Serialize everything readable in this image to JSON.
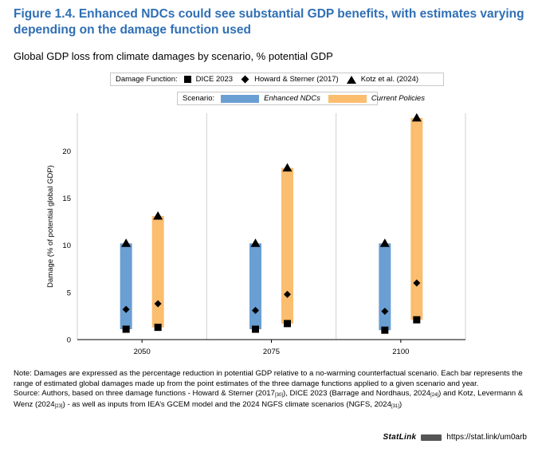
{
  "header": {
    "figure_title": "Figure 1.4. Enhanced NDCs could see substantial GDP benefits, with estimates varying depending on the damage function used",
    "subtitle": "Global GDP loss from climate damages by scenario, % potential GDP"
  },
  "legend": {
    "damage_function_label": "Damage Function:",
    "damage_functions": [
      {
        "name": "DICE 2023",
        "marker": "square"
      },
      {
        "name": "Howard & Sterner (2017)",
        "marker": "diamond"
      },
      {
        "name": "Kotz et al. (2024)",
        "marker": "triangle"
      }
    ],
    "scenario_label": "Scenario:",
    "scenarios": [
      {
        "name": "Enhanced NDCs",
        "color": "#6a9fd4"
      },
      {
        "name": "Current Policies",
        "color": "#fbbd6e"
      }
    ]
  },
  "chart_data": {
    "type": "range-bar",
    "title": "Global GDP loss from climate damages by scenario, % potential GDP",
    "xlabel": "",
    "ylabel": "Damage (% of potential global GDP)",
    "ylim": [
      0,
      24
    ],
    "yticks": [
      0,
      5,
      10,
      15,
      20
    ],
    "categories": [
      "2050",
      "2075",
      "2100"
    ],
    "series": [
      {
        "name": "Enhanced NDCs",
        "color": "#6a9fd4",
        "ranges": [
          {
            "dice": 1.1,
            "howard": 3.2,
            "kotz": 10.2
          },
          {
            "dice": 1.1,
            "howard": 3.1,
            "kotz": 10.2
          },
          {
            "dice": 1.0,
            "howard": 3.0,
            "kotz": 10.2
          }
        ]
      },
      {
        "name": "Current Policies",
        "color": "#fbbd6e",
        "ranges": [
          {
            "dice": 1.3,
            "howard": 3.8,
            "kotz": 13.1
          },
          {
            "dice": 1.7,
            "howard": 4.8,
            "kotz": 18.2
          },
          {
            "dice": 2.1,
            "howard": 6.0,
            "kotz": 23.5
          }
        ]
      }
    ]
  },
  "notes": {
    "note": "Note: Damages are expressed as the percentage reduction in potential GDP relative to a no-warming counterfactual scenario. Each bar represents the range of estimated global damages made up from the point estimates of the three damage functions applied to a given scenario and year.",
    "source_a": "Source: Authors, based on three damage functions - Howard & Sterner (2017",
    "ref_30": "[30]",
    "source_b": "), DICE 2023 (Barrage and Nordhaus, 2024",
    "ref_24": "[24]",
    "source_c": ") and Kotz, Levermann & Wenz (2024",
    "ref_23": "[23]",
    "source_d": ") - as well as inputs from IEA’s GCEM model and the 2024 NGFS climate scenarios (NGFS, 2024",
    "ref_31": "[31]",
    "source_e": ")"
  },
  "statlink": {
    "logo": "StatLink",
    "url": "https://stat.link/um0arb"
  }
}
